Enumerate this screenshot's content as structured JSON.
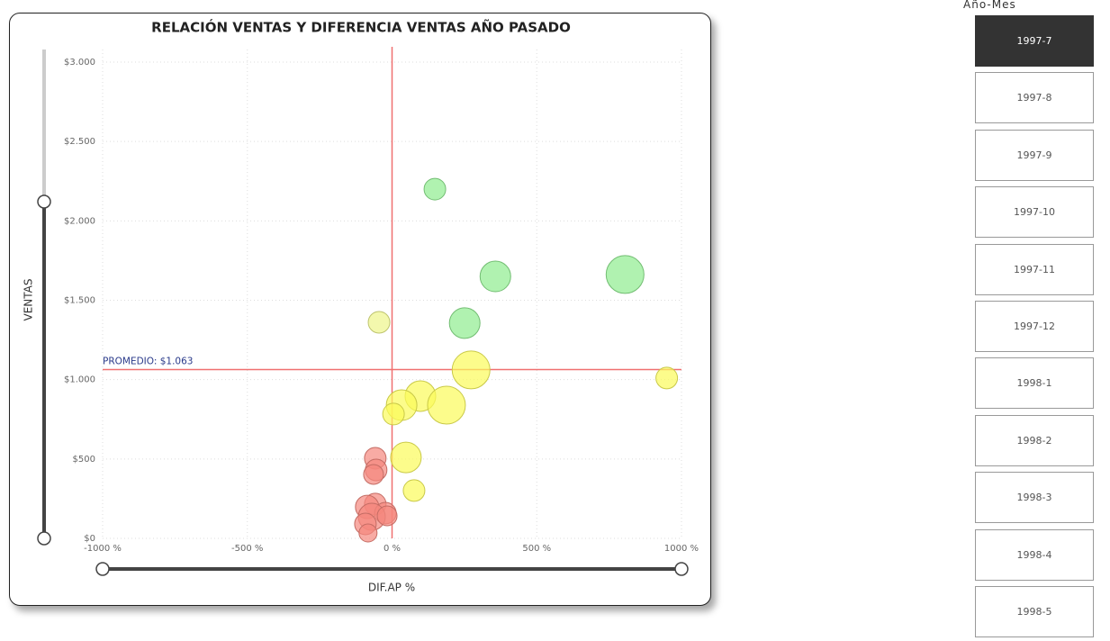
{
  "chart_data": {
    "type": "bubble",
    "title": "RELACIÓN VENTAS Y DIFERENCIA VENTAS AÑO PASADO",
    "x_label": "DIF.AP %",
    "y_label": "VENTAS",
    "xlim": [
      -1000,
      1000
    ],
    "xticks": [
      {
        "value": -1000,
        "label": "-1000 %"
      },
      {
        "value": -500,
        "label": "-500 %"
      },
      {
        "value": 0,
        "label": "0 %"
      },
      {
        "value": 500,
        "label": "500 %"
      },
      {
        "value": 1000,
        "label": "1000 %"
      }
    ],
    "ylim": [
      0,
      3000
    ],
    "yticks": [
      {
        "value": 0,
        "label": "$0"
      },
      {
        "value": 500,
        "label": "$500"
      },
      {
        "value": 1000,
        "label": "$1.000"
      },
      {
        "value": 1500,
        "label": "$1.500"
      },
      {
        "value": 2000,
        "label": "$2.000"
      },
      {
        "value": 2500,
        "label": "$2.500"
      },
      {
        "value": 3000,
        "label": "$3.000"
      }
    ],
    "grid": true,
    "average_line": {
      "value": 1063,
      "label": "PROMEDIO: $1.063"
    },
    "x_reference": 0,
    "x": [
      148,
      357,
      805,
      251,
      -45,
      273,
      949,
      98,
      33,
      188,
      5,
      48,
      76,
      -58,
      -55,
      -64,
      -58,
      -86,
      -23,
      -70,
      -17,
      -92,
      -83
    ],
    "values": [
      2200,
      1650,
      1662,
      1356,
      1361,
      1061,
      1010,
      896,
      839,
      839,
      783,
      510,
      301,
      505,
      431,
      403,
      216,
      198,
      159,
      136,
      142,
      91,
      34
    ],
    "sizes": [
      12,
      17,
      21,
      17,
      12,
      21,
      12,
      17,
      17,
      21,
      12,
      17,
      12,
      12,
      12,
      11,
      12,
      13,
      12,
      15,
      11,
      12,
      10
    ],
    "colors": [
      "#8fec8f",
      "#8fec8f",
      "#8fec8f",
      "#8fec8f",
      "#eef58a",
      "#fbfb5a",
      "#fbfb5a",
      "#fbfb5a",
      "#fbfb5a",
      "#fbfb5a",
      "#fbfb5a",
      "#fbfb5a",
      "#fbfb5a",
      "#f5877d",
      "#f5877d",
      "#f5877d",
      "#f5877d",
      "#f5877d",
      "#f5877d",
      "#f5877d",
      "#f5877d",
      "#f5877d",
      "#f5877d"
    ]
  },
  "slicer": {
    "header": "Año-Mes",
    "selected": 0,
    "items": [
      "1997-7",
      "1997-8",
      "1997-9",
      "1997-10",
      "1997-11",
      "1997-12",
      "1998-1",
      "1998-2",
      "1998-3",
      "1998-4",
      "1998-5"
    ]
  }
}
